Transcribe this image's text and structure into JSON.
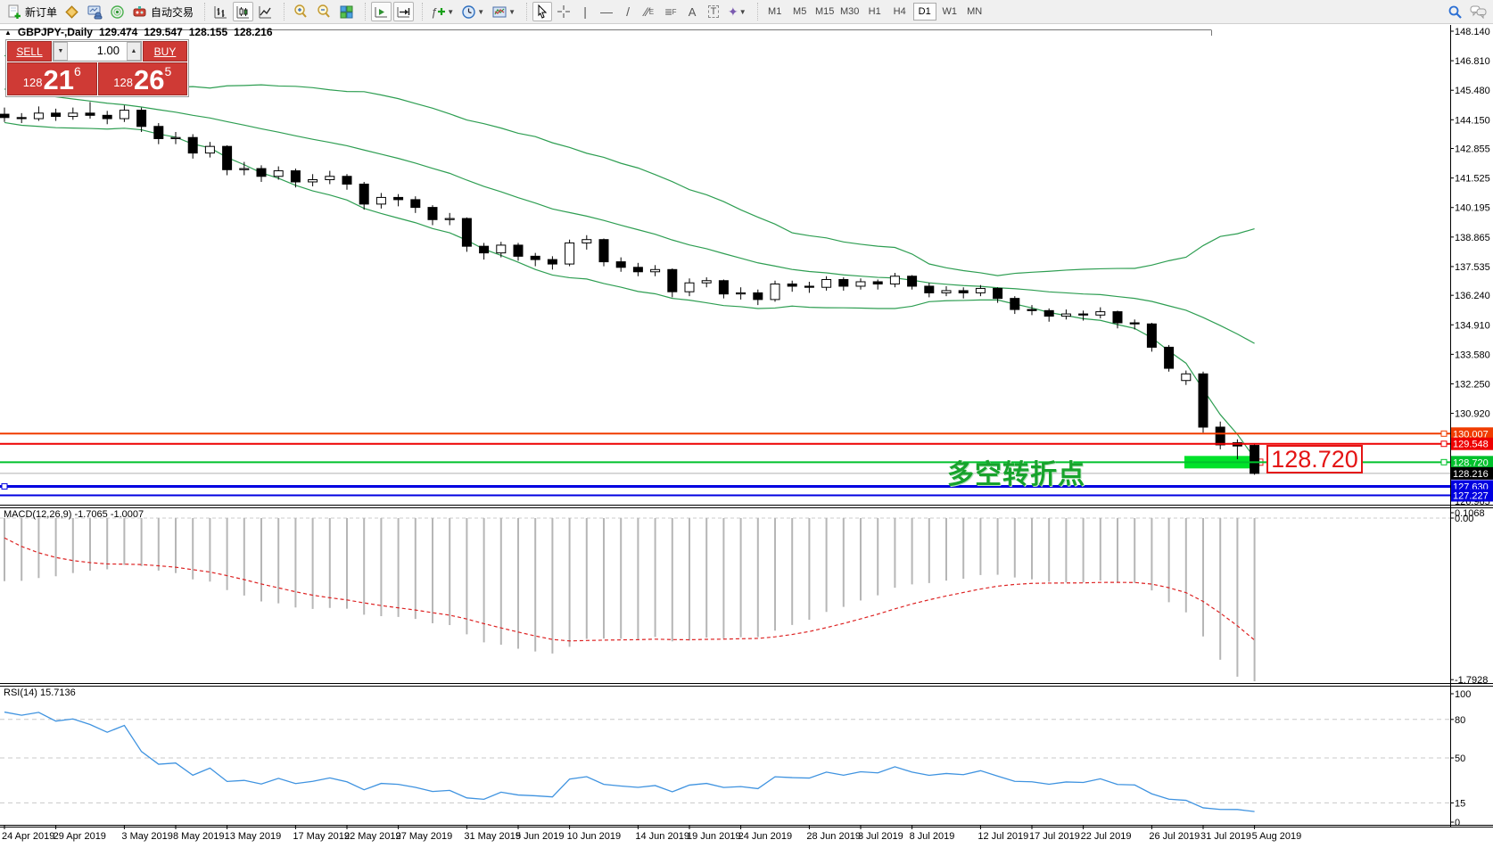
{
  "toolbar": {
    "new_order_label": "新订单",
    "auto_trading_label": "自动交易",
    "timeframes": [
      "M1",
      "M5",
      "M15",
      "M30",
      "H1",
      "H4",
      "D1",
      "W1",
      "MN"
    ],
    "active_timeframe": "D1"
  },
  "chart_header": {
    "marker": "▲",
    "symbol": "GBPJPY-,Daily",
    "open": "129.474",
    "high": "129.547",
    "low": "128.155",
    "close": "128.216"
  },
  "one_click": {
    "sell_label": "SELL",
    "buy_label": "BUY",
    "volume": "1.00",
    "sell_price_prefix": "128",
    "sell_price_big": "21",
    "sell_price_sup": "6",
    "buy_price_prefix": "128",
    "buy_price_big": "26",
    "buy_price_sup": "5"
  },
  "annotations": {
    "turning_point_text": "多空转折点",
    "price_tag": "128.720",
    "highlight_price": 128.72
  },
  "indicator_labels": {
    "macd": "MACD(12,26,9) -1.7065 -1.0007",
    "rsi": "RSI(14) 15.7136"
  },
  "axes": {
    "price_labels": [
      "148.140",
      "146.810",
      "145.480",
      "144.150",
      "142.855",
      "141.525",
      "140.195",
      "138.865",
      "137.535",
      "136.240",
      "134.910",
      "133.580",
      "132.250",
      "130.920",
      "126.965"
    ],
    "macd_labels": [
      "0.1068",
      "0.00",
      "-1.7928"
    ],
    "rsi_labels": [
      "100",
      "80",
      "50",
      "15",
      "0"
    ],
    "date_labels": [
      [
        "24 Apr 2019",
        0
      ],
      [
        "29 Apr 2019",
        3
      ],
      [
        "3 May 2019",
        7
      ],
      [
        "8 May 2019",
        10
      ],
      [
        "13 May 2019",
        13
      ],
      [
        "17 May 2019",
        17
      ],
      [
        "22 May 2019",
        20
      ],
      [
        "27 May 2019",
        23
      ],
      [
        "31 May 2019",
        27
      ],
      [
        "5 Jun 2019",
        30
      ],
      [
        "10 Jun 2019",
        33
      ],
      [
        "14 Jun 2019",
        37
      ],
      [
        "19 Jun 2019",
        40
      ],
      [
        "24 Jun 2019",
        43
      ],
      [
        "28 Jun 2019",
        47
      ],
      [
        "3 Jul 2019",
        50
      ],
      [
        "8 Jul 2019",
        53
      ],
      [
        "12 Jul 2019",
        57
      ],
      [
        "17 Jul 2019",
        60
      ],
      [
        "22 Jul 2019",
        63
      ],
      [
        "26 Jul 2019",
        67
      ],
      [
        "31 Jul 2019",
        70
      ],
      [
        "5 Aug 2019",
        73
      ]
    ]
  },
  "price_lines": [
    {
      "price": 130.007,
      "label": "130.007",
      "color": "#f03c00",
      "width": 2,
      "handle": "right"
    },
    {
      "price": 129.548,
      "label": "129.548",
      "color": "#ee0000",
      "width": 2,
      "handle": "right"
    },
    {
      "price": 128.72,
      "label": "128.720",
      "color": "#00c12c",
      "width": 2,
      "handle": "right"
    },
    {
      "price": 127.63,
      "label": "127.630",
      "color": "#0000e0",
      "width": 3,
      "handle": "left"
    },
    {
      "price": 127.227,
      "label": "127.227",
      "color": "#0000e0",
      "width": 2,
      "handle": "none"
    }
  ],
  "bid_line": {
    "price": 128.216,
    "label": "128.216",
    "color": "#b0b0b0",
    "badge_color": "#000000"
  },
  "chart_data": {
    "type": "candlestick",
    "symbol": "GBPJPY",
    "timeframe": "Daily",
    "ylim": [
      126.965,
      148.14
    ],
    "ohlc": [
      [
        144.4,
        144.7,
        144.05,
        144.25
      ],
      [
        144.25,
        144.45,
        144.0,
        144.2
      ],
      [
        144.2,
        144.75,
        144.1,
        144.45
      ],
      [
        144.45,
        144.65,
        144.1,
        144.3
      ],
      [
        144.3,
        144.7,
        144.15,
        144.45
      ],
      [
        144.45,
        144.95,
        144.2,
        144.35
      ],
      [
        144.35,
        144.55,
        143.95,
        144.2
      ],
      [
        144.2,
        144.8,
        144.05,
        144.58
      ],
      [
        144.58,
        144.7,
        143.6,
        143.85
      ],
      [
        143.85,
        144.0,
        143.05,
        143.3
      ],
      [
        143.3,
        143.6,
        143.05,
        143.35
      ],
      [
        143.35,
        143.5,
        142.4,
        142.65
      ],
      [
        142.65,
        143.15,
        142.45,
        142.95
      ],
      [
        142.95,
        143.0,
        141.65,
        141.9
      ],
      [
        141.9,
        142.25,
        141.65,
        141.95
      ],
      [
        141.95,
        142.1,
        141.35,
        141.6
      ],
      [
        141.6,
        142.05,
        141.45,
        141.85
      ],
      [
        141.85,
        141.95,
        141.1,
        141.35
      ],
      [
        141.35,
        141.7,
        141.15,
        141.45
      ],
      [
        141.45,
        141.85,
        141.25,
        141.6
      ],
      [
        141.6,
        141.7,
        141.0,
        141.25
      ],
      [
        141.25,
        141.35,
        140.1,
        140.35
      ],
      [
        140.35,
        140.85,
        140.15,
        140.65
      ],
      [
        140.65,
        140.8,
        140.25,
        140.55
      ],
      [
        140.55,
        140.7,
        139.95,
        140.2
      ],
      [
        140.2,
        140.3,
        139.4,
        139.65
      ],
      [
        139.65,
        139.95,
        139.4,
        139.7
      ],
      [
        139.7,
        139.75,
        138.2,
        138.45
      ],
      [
        138.45,
        138.6,
        137.85,
        138.15
      ],
      [
        138.15,
        138.65,
        137.95,
        138.5
      ],
      [
        138.5,
        138.6,
        137.8,
        138.0
      ],
      [
        138.0,
        138.15,
        137.55,
        137.85
      ],
      [
        137.85,
        138.0,
        137.4,
        137.65
      ],
      [
        137.65,
        138.75,
        137.55,
        138.6
      ],
      [
        138.6,
        138.95,
        138.3,
        138.75
      ],
      [
        138.75,
        138.8,
        137.55,
        137.75
      ],
      [
        137.75,
        137.95,
        137.3,
        137.5
      ],
      [
        137.5,
        137.7,
        137.1,
        137.3
      ],
      [
        137.3,
        137.6,
        137.1,
        137.4
      ],
      [
        137.4,
        137.45,
        136.15,
        136.4
      ],
      [
        136.4,
        137.0,
        136.2,
        136.8
      ],
      [
        136.8,
        137.05,
        136.6,
        136.9
      ],
      [
        136.9,
        136.95,
        136.1,
        136.3
      ],
      [
        136.3,
        136.6,
        136.05,
        136.35
      ],
      [
        136.35,
        136.5,
        135.8,
        136.05
      ],
      [
        136.05,
        136.9,
        135.95,
        136.75
      ],
      [
        136.75,
        136.9,
        136.4,
        136.65
      ],
      [
        136.65,
        136.85,
        136.35,
        136.6
      ],
      [
        136.6,
        137.1,
        136.45,
        136.95
      ],
      [
        136.95,
        137.05,
        136.45,
        136.65
      ],
      [
        136.65,
        137.0,
        136.5,
        136.85
      ],
      [
        136.85,
        136.95,
        136.5,
        136.75
      ],
      [
        136.75,
        137.25,
        136.6,
        137.1
      ],
      [
        137.1,
        137.15,
        136.5,
        136.65
      ],
      [
        136.65,
        136.8,
        136.15,
        136.35
      ],
      [
        136.35,
        136.65,
        136.2,
        136.45
      ],
      [
        136.45,
        136.6,
        136.1,
        136.35
      ],
      [
        136.35,
        136.7,
        136.2,
        136.55
      ],
      [
        136.55,
        136.6,
        135.9,
        136.1
      ],
      [
        136.1,
        136.2,
        135.4,
        135.6
      ],
      [
        135.6,
        135.8,
        135.35,
        135.55
      ],
      [
        135.55,
        135.65,
        135.05,
        135.3
      ],
      [
        135.3,
        135.6,
        135.15,
        135.4
      ],
      [
        135.4,
        135.55,
        135.1,
        135.35
      ],
      [
        135.35,
        135.7,
        135.2,
        135.5
      ],
      [
        135.5,
        135.55,
        134.75,
        135.0
      ],
      [
        135.0,
        135.15,
        134.7,
        134.95
      ],
      [
        134.95,
        135.0,
        133.7,
        133.9
      ],
      [
        133.9,
        134.0,
        132.8,
        132.95
      ],
      [
        132.4,
        132.85,
        132.2,
        132.7
      ],
      [
        132.7,
        132.8,
        130.05,
        130.3
      ],
      [
        130.3,
        130.55,
        129.3,
        129.5
      ],
      [
        129.6,
        129.75,
        128.85,
        129.45
      ],
      [
        129.474,
        129.547,
        128.155,
        128.216
      ]
    ],
    "indicators": [
      {
        "name": "Bollinger Bands",
        "period": 20,
        "deviation": 2,
        "color": "#2e9e52"
      },
      {
        "name": "MACD",
        "fast": 12,
        "slow": 26,
        "signal": 9,
        "current": -1.7065,
        "current_signal": -1.0007,
        "range": [
          -1.7928,
          0.1068
        ]
      },
      {
        "name": "RSI",
        "period": 14,
        "current": 15.7136,
        "levels": [
          80,
          50,
          15
        ],
        "range": [
          0,
          100
        ]
      }
    ],
    "seeds": {
      "ema12": 144.9,
      "ema26": 145.6,
      "signal": -0.1,
      "avg_gain": 0.12,
      "avg_loss": 0.02,
      "pre_close_start": 146.9,
      "pre_close_step": -0.13
    }
  }
}
